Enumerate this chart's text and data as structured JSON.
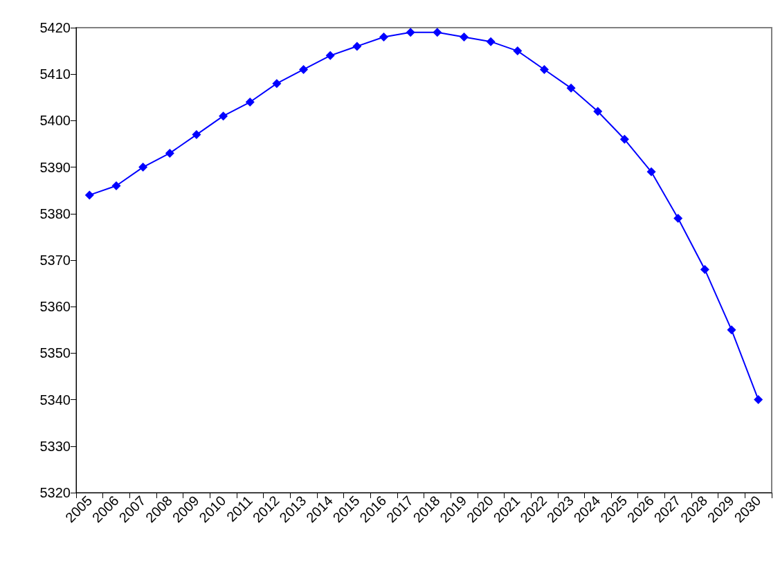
{
  "chart_data": {
    "type": "line",
    "categories": [
      "2005",
      "2006",
      "2007",
      "2008",
      "2009",
      "2010",
      "2011",
      "2012",
      "2013",
      "2014",
      "2015",
      "2016",
      "2017",
      "2018",
      "2019",
      "2020",
      "2021",
      "2022",
      "2023",
      "2024",
      "2025",
      "2026",
      "2027",
      "2028",
      "2029",
      "2030"
    ],
    "series": [
      {
        "color": "#0000ff",
        "values": [
          5384,
          5386,
          5390,
          5393,
          5397,
          5401,
          5404,
          5408,
          5411,
          5414,
          5416,
          5418,
          5419,
          5419,
          5418,
          5417,
          5415,
          5411,
          5407,
          5402,
          5396,
          5389,
          5379,
          5368,
          5355,
          5340
        ]
      }
    ],
    "ylim": [
      5320,
      5420
    ],
    "yticks": [
      5320,
      5330,
      5340,
      5350,
      5360,
      5370,
      5380,
      5390,
      5400,
      5410,
      5420
    ],
    "grid": false,
    "marker": "diamond",
    "line_style": "solid"
  }
}
